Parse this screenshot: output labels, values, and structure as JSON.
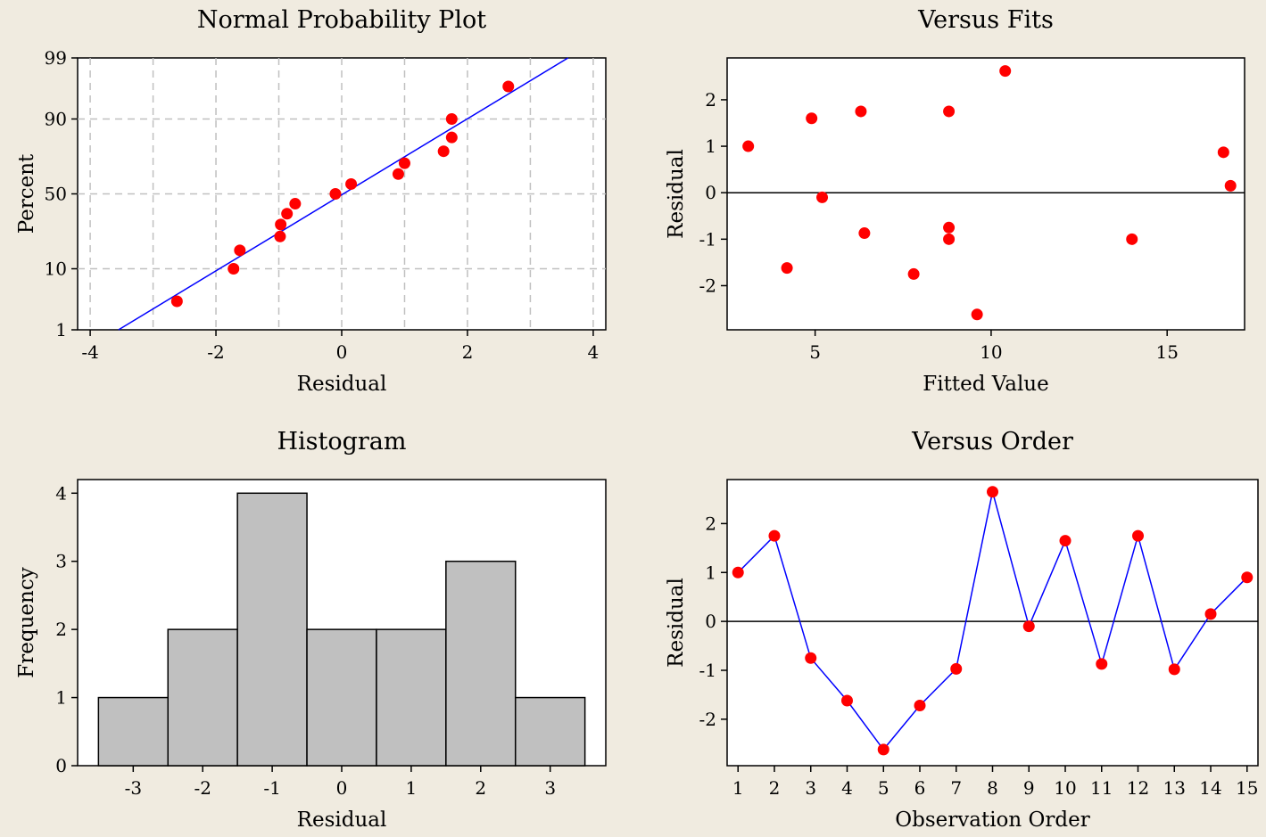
{
  "colors": {
    "background": "#f0ebe0",
    "marker": "#ff0000",
    "line": "#0000ff",
    "bar": "#c0c0c0",
    "grid": "#c0c0c0"
  },
  "chart_data": [
    {
      "id": "normal_probability_plot",
      "type": "scatter",
      "title": "Normal Probability Plot",
      "xlabel": "Residual",
      "ylabel": "Percent",
      "xlim": [
        -4.2,
        4.2
      ],
      "y_scale": "probability",
      "x_ticks": [
        "-4",
        "-2",
        "0",
        "2",
        "4"
      ],
      "y_ticks": [
        "1",
        "10",
        "50",
        "90",
        "99"
      ],
      "grid": true,
      "fit_line": {
        "x": [
          -3.55,
          3.6
        ],
        "y": [
          1,
          99
        ]
      },
      "points": [
        {
          "x": -2.62,
          "y": 3.3
        },
        {
          "x": -1.72,
          "y": 10.0
        },
        {
          "x": -1.62,
          "y": 16.7
        },
        {
          "x": -0.98,
          "y": 23.3
        },
        {
          "x": -0.97,
          "y": 30.0
        },
        {
          "x": -0.87,
          "y": 36.7
        },
        {
          "x": -0.74,
          "y": 43.3
        },
        {
          "x": -0.1,
          "y": 50.0
        },
        {
          "x": 0.15,
          "y": 56.7
        },
        {
          "x": 0.9,
          "y": 63.3
        },
        {
          "x": 1.0,
          "y": 70.0
        },
        {
          "x": 1.62,
          "y": 76.7
        },
        {
          "x": 1.75,
          "y": 83.3
        },
        {
          "x": 1.75,
          "y": 90.0
        },
        {
          "x": 2.65,
          "y": 96.7
        }
      ]
    },
    {
      "id": "versus_fits",
      "type": "scatter",
      "title": "Versus Fits",
      "xlabel": "Fitted Value",
      "ylabel": "Residual",
      "xlim": [
        2.5,
        17.2
      ],
      "ylim": [
        -2.95,
        2.9
      ],
      "x_ticks": [
        "5",
        "10",
        "15"
      ],
      "y_ticks": [
        "-2",
        "-1",
        "0",
        "1",
        "2"
      ],
      "reference_line": 0,
      "points": [
        {
          "x": 3.1,
          "y": 1.0
        },
        {
          "x": 4.2,
          "y": -1.62
        },
        {
          "x": 4.9,
          "y": 1.6
        },
        {
          "x": 5.2,
          "y": -0.1
        },
        {
          "x": 6.3,
          "y": 1.75
        },
        {
          "x": 6.4,
          "y": -0.87
        },
        {
          "x": 7.8,
          "y": -1.75
        },
        {
          "x": 8.8,
          "y": 1.75
        },
        {
          "x": 8.8,
          "y": -0.75
        },
        {
          "x": 8.8,
          "y": -1.0
        },
        {
          "x": 9.6,
          "y": -2.62
        },
        {
          "x": 10.4,
          "y": 2.62
        },
        {
          "x": 14.0,
          "y": -1.0
        },
        {
          "x": 16.6,
          "y": 0.87
        },
        {
          "x": 16.8,
          "y": 0.15
        }
      ]
    },
    {
      "id": "histogram",
      "type": "bar",
      "title": "Histogram",
      "xlabel": "Residual",
      "ylabel": "Frequency",
      "categories": [
        "-3",
        "-2",
        "-1",
        "0",
        "1",
        "2",
        "3"
      ],
      "values": [
        1,
        2,
        4,
        2,
        2,
        3,
        1
      ],
      "xlim": [
        -3.8,
        3.8
      ],
      "ylim": [
        0,
        4.2
      ],
      "y_ticks": [
        "0",
        "1",
        "2",
        "3",
        "4"
      ]
    },
    {
      "id": "versus_order",
      "type": "line",
      "title": "Versus Order",
      "xlabel": "Observation Order",
      "ylabel": "Residual",
      "x": [
        1,
        2,
        3,
        4,
        5,
        6,
        7,
        8,
        9,
        10,
        11,
        12,
        13,
        14,
        15
      ],
      "values": [
        1.0,
        1.75,
        -0.75,
        -1.62,
        -2.62,
        -1.72,
        -0.97,
        2.65,
        -0.1,
        1.65,
        -0.87,
        1.75,
        -0.98,
        0.15,
        0.9
      ],
      "xlim": [
        0.7,
        15.3
      ],
      "ylim": [
        -2.95,
        2.9
      ],
      "x_ticks": [
        "1",
        "2",
        "3",
        "4",
        "5",
        "6",
        "7",
        "8",
        "9",
        "10",
        "11",
        "12",
        "13",
        "14",
        "15"
      ],
      "y_ticks": [
        "-2",
        "-1",
        "0",
        "1",
        "2"
      ],
      "reference_line": 0
    }
  ]
}
